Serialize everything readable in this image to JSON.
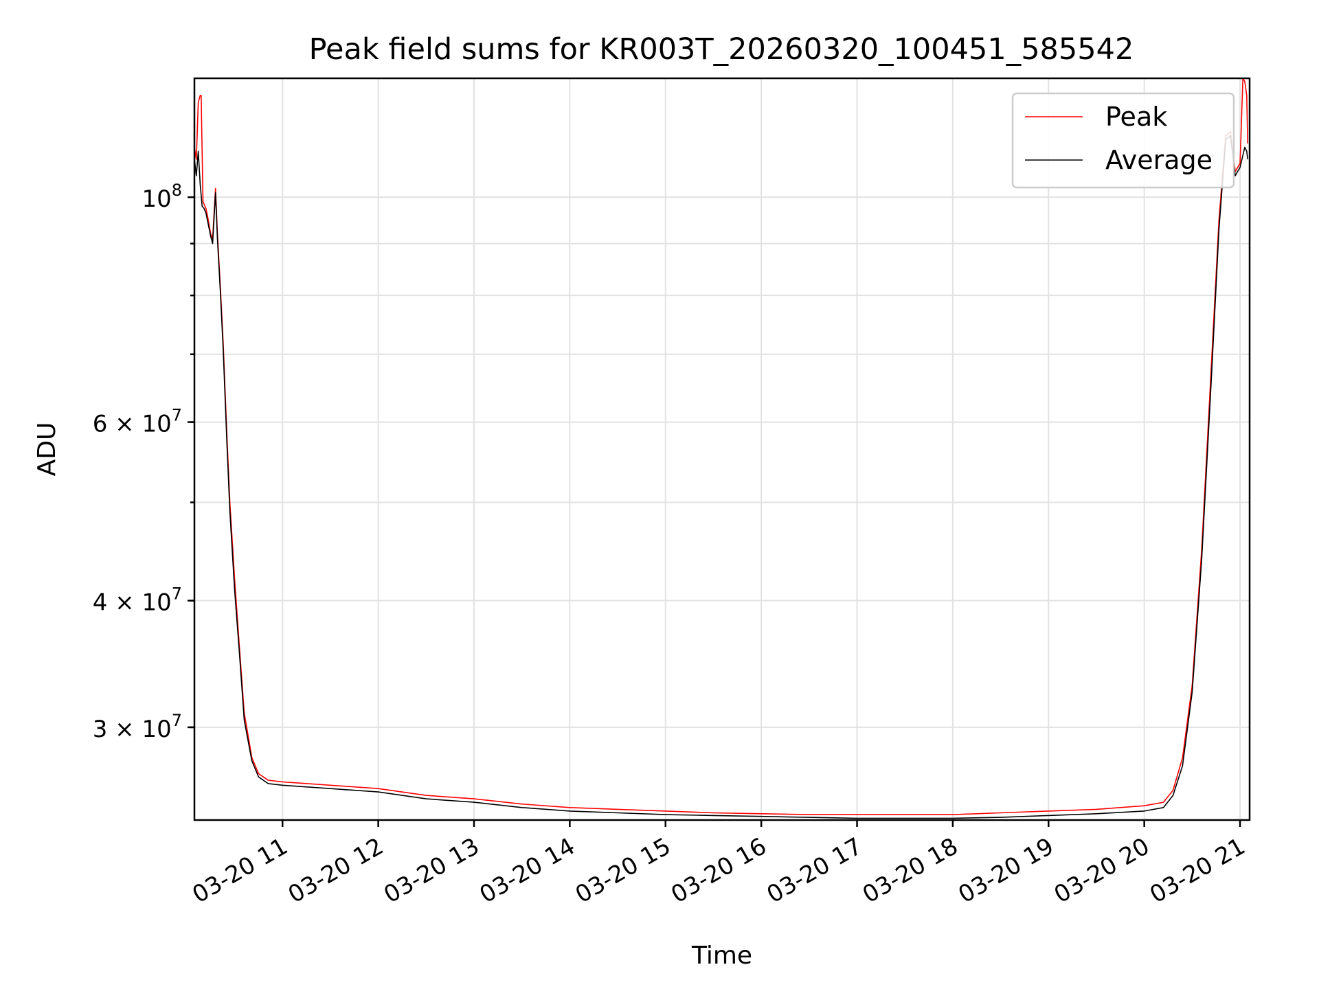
{
  "chart_data": {
    "type": "line",
    "title": "Peak field sums for KR003T_20260320_100451_585542",
    "xlabel": "Time",
    "ylabel": "ADU",
    "yscale": "log",
    "ylim": [
      24300000,
      131000000
    ],
    "xlim_hours": [
      10.08,
      21.1
    ],
    "grid": true,
    "legend_position": "upper right",
    "x_ticks": [
      {
        "value": 11,
        "label": "03-20 11"
      },
      {
        "value": 12,
        "label": "03-20 12"
      },
      {
        "value": 13,
        "label": "03-20 13"
      },
      {
        "value": 14,
        "label": "03-20 14"
      },
      {
        "value": 15,
        "label": "03-20 15"
      },
      {
        "value": 16,
        "label": "03-20 16"
      },
      {
        "value": 17,
        "label": "03-20 17"
      },
      {
        "value": 18,
        "label": "03-20 18"
      },
      {
        "value": 19,
        "label": "03-20 19"
      },
      {
        "value": 20,
        "label": "03-20 20"
      },
      {
        "value": 21,
        "label": "03-20 21"
      }
    ],
    "y_major_ticks": [
      {
        "value": 100000000,
        "mantissa": "",
        "exponent": "8"
      },
      {
        "value": 60000000,
        "mantissa": "6",
        "exponent": "7"
      },
      {
        "value": 40000000,
        "mantissa": "4",
        "exponent": "7"
      },
      {
        "value": 30000000,
        "mantissa": "3",
        "exponent": "7"
      }
    ],
    "y_minor_ticks": [
      30000000,
      40000000,
      50000000,
      60000000,
      70000000,
      80000000,
      90000000
    ],
    "series": [
      {
        "name": "Peak",
        "color": "#ff0000",
        "x": [
          10.08,
          10.1,
          10.12,
          10.14,
          10.15,
          10.17,
          10.18,
          10.2,
          10.22,
          10.25,
          10.27,
          10.3,
          10.32,
          10.35,
          10.38,
          10.42,
          10.45,
          10.5,
          10.55,
          10.6,
          10.68,
          10.75,
          10.85,
          11.0,
          11.5,
          12.0,
          12.5,
          13.0,
          13.5,
          14.0,
          14.5,
          15.0,
          15.5,
          16.0,
          16.5,
          17.0,
          17.5,
          18.0,
          18.5,
          19.0,
          19.5,
          20.0,
          20.2,
          20.3,
          20.4,
          20.5,
          20.6,
          20.7,
          20.78,
          20.85,
          20.9,
          20.95,
          21.0,
          21.03,
          21.05,
          21.07,
          21.08
        ],
        "y": [
          112000000,
          109000000,
          124000000,
          126000000,
          126000000,
          99000000,
          98500000,
          97500000,
          95500000,
          92000000,
          91000000,
          102000000,
          92000000,
          82000000,
          72000000,
          58000000,
          50000000,
          42000000,
          36000000,
          31000000,
          28000000,
          27000000,
          26600000,
          26500000,
          26300000,
          26100000,
          25700000,
          25500000,
          25200000,
          25000000,
          24900000,
          24800000,
          24700000,
          24650000,
          24600000,
          24600000,
          24600000,
          24600000,
          24700000,
          24800000,
          24900000,
          25100000,
          25300000,
          26000000,
          28000000,
          33000000,
          45000000,
          68000000,
          95000000,
          115000000,
          116000000,
          106000000,
          108000000,
          131000000,
          130000000,
          126000000,
          113000000
        ]
      },
      {
        "name": "Average",
        "color": "#000000",
        "x": [
          10.08,
          10.1,
          10.12,
          10.14,
          10.16,
          10.18,
          10.2,
          10.22,
          10.25,
          10.27,
          10.3,
          10.32,
          10.35,
          10.38,
          10.42,
          10.45,
          10.5,
          10.55,
          10.6,
          10.68,
          10.75,
          10.85,
          11.0,
          11.5,
          12.0,
          12.5,
          13.0,
          13.5,
          14.0,
          14.5,
          15.0,
          15.5,
          16.0,
          16.5,
          17.0,
          17.5,
          18.0,
          18.5,
          19.0,
          19.5,
          20.0,
          20.2,
          20.3,
          20.4,
          20.5,
          20.6,
          20.7,
          20.78,
          20.85,
          20.9,
          20.95,
          21.0,
          21.03,
          21.05,
          21.07,
          21.08
        ],
        "y": [
          109000000,
          105000000,
          111000000,
          103000000,
          98000000,
          97500000,
          96500000,
          94500000,
          91500000,
          90000000,
          101000000,
          91000000,
          81000000,
          71000000,
          57000000,
          49000000,
          41000000,
          35500000,
          30500000,
          27800000,
          26800000,
          26400000,
          26300000,
          26100000,
          25900000,
          25500000,
          25300000,
          25000000,
          24800000,
          24700000,
          24600000,
          24550000,
          24500000,
          24450000,
          24400000,
          24400000,
          24400000,
          24450000,
          24550000,
          24650000,
          24800000,
          25000000,
          25700000,
          27500000,
          32500000,
          44000000,
          66000000,
          93000000,
          114000000,
          115000000,
          105000000,
          107000000,
          110000000,
          112000000,
          111000000,
          109000000
        ]
      }
    ]
  }
}
